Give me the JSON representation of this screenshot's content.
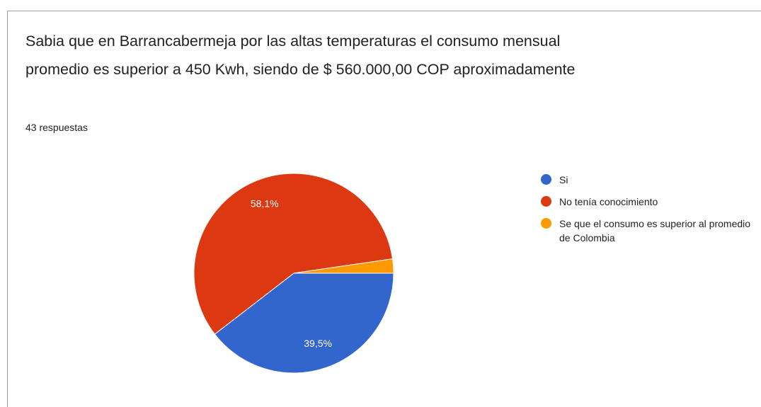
{
  "chart_data": {
    "type": "pie",
    "title": "Sabia que en Barrancabermeja por las altas temperaturas el consumo mensual promedio es superior a 450 Kwh, siendo de $ 560.000,00 COP aproximadamente",
    "subtitle": "43 respuestas",
    "categories": [
      "Si",
      "No tenía conocimiento",
      "Se que el consumo es superior al promedio de Colombia"
    ],
    "values": [
      39.5,
      58.1,
      2.3
    ],
    "value_labels": [
      "39,5%",
      "58,1%",
      null
    ],
    "colors": [
      "#3366cc",
      "#dc3912",
      "#ff9900"
    ],
    "legend": "right"
  }
}
